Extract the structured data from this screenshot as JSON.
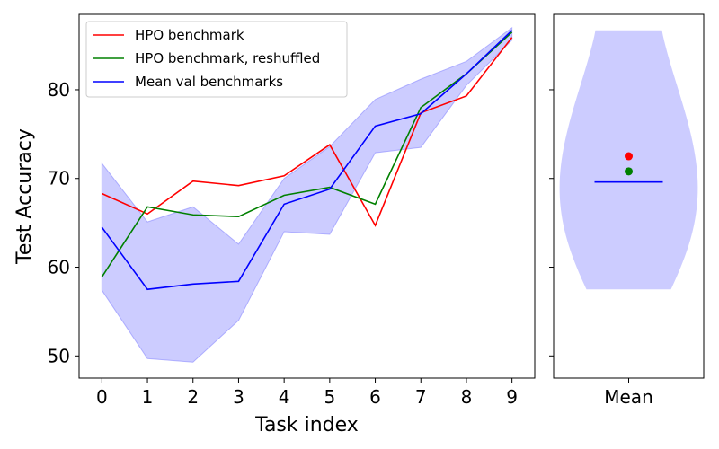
{
  "chart_data": [
    {
      "type": "line",
      "xlabel": "Task index",
      "ylabel": "Test Accuracy",
      "x": [
        0,
        1,
        2,
        3,
        4,
        5,
        6,
        7,
        8,
        9
      ],
      "xlim": [
        -0.5,
        9.5
      ],
      "ylim": [
        47.5,
        88.5
      ],
      "xticks": [
        "0",
        "1",
        "2",
        "3",
        "4",
        "5",
        "6",
        "7",
        "8",
        "9"
      ],
      "yticks": [
        "50",
        "60",
        "70",
        "80"
      ],
      "grid": false,
      "legend_position": "top-left",
      "band": {
        "color": "#8080ff",
        "upper": [
          71.7,
          65.1,
          66.8,
          62.6,
          70.0,
          73.6,
          78.9,
          81.2,
          83.2,
          87.0
        ],
        "lower": [
          57.4,
          49.7,
          49.3,
          54.0,
          64.0,
          63.7,
          72.9,
          73.5,
          80.5,
          85.6
        ]
      },
      "series": [
        {
          "name": "HPO benchmark",
          "color": "#ff0000",
          "values": [
            68.3,
            66.0,
            69.7,
            69.2,
            70.3,
            73.8,
            64.7,
            77.4,
            79.3,
            85.9
          ]
        },
        {
          "name": "HPO benchmark, reshuffled",
          "color": "#008000",
          "values": [
            58.9,
            66.8,
            65.9,
            65.7,
            68.1,
            69.0,
            67.1,
            78.0,
            81.8,
            86.5
          ]
        },
        {
          "name": "Mean val benchmarks",
          "color": "#0000ff",
          "values": [
            64.5,
            57.5,
            58.1,
            58.4,
            67.1,
            68.8,
            75.9,
            77.3,
            81.8,
            86.7
          ]
        }
      ]
    },
    {
      "type": "violin",
      "categories": [
        "Mean"
      ],
      "ylim": [
        47.5,
        88.5
      ],
      "violin_range": [
        57.5,
        86.7
      ],
      "violin_color": "#ccccff",
      "median": {
        "value": 69.6,
        "color": "#0000ff"
      },
      "points": [
        {
          "value": 72.5,
          "color": "#ff0000"
        },
        {
          "value": 70.8,
          "color": "#008000"
        }
      ]
    }
  ]
}
